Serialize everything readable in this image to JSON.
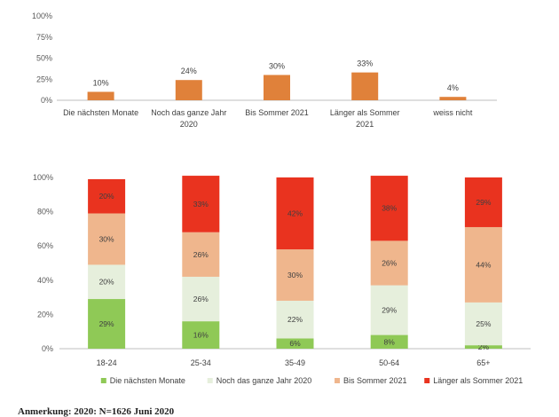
{
  "chart_data": [
    {
      "type": "bar",
      "categories": [
        [
          "Die nächsten Monate"
        ],
        [
          "Noch das ganze Jahr",
          "2020"
        ],
        [
          "Bis Sommer 2021"
        ],
        [
          "Länger als Sommer",
          "2021"
        ],
        [
          "weiss nicht"
        ]
      ],
      "values": [
        10,
        24,
        30,
        33,
        4
      ],
      "value_labels": [
        "10%",
        "24%",
        "30%",
        "33%",
        "4%"
      ],
      "ylim": [
        0,
        100
      ],
      "yticks": [
        "0%",
        "25%",
        "50%",
        "75%",
        "100%"
      ],
      "ytick_values": [
        0,
        25,
        50,
        75,
        100
      ],
      "bar_color": "#e0813a"
    },
    {
      "type": "bar",
      "stacked": true,
      "categories": [
        "18-24",
        "25-34",
        "35-49",
        "50-64",
        "65+"
      ],
      "ylim": [
        0,
        100
      ],
      "yticks": [
        "0%",
        "20%",
        "40%",
        "60%",
        "80%",
        "100%"
      ],
      "ytick_values": [
        0,
        20,
        40,
        60,
        80,
        100
      ],
      "legend_position": "bottom",
      "series": [
        {
          "name": "Die nächsten Monate",
          "color": "#8fc956",
          "values": [
            29,
            16,
            6,
            8,
            2
          ],
          "labels": [
            "29%",
            "16%",
            "6%",
            "8%",
            "2%"
          ]
        },
        {
          "name": "Noch das ganze Jahr 2020",
          "color": "#e6efdc",
          "values": [
            20,
            26,
            22,
            29,
            25
          ],
          "labels": [
            "20%",
            "26%",
            "22%",
            "29%",
            "25%"
          ]
        },
        {
          "name": "Bis Sommer 2021",
          "color": "#efb68d",
          "values": [
            30,
            26,
            30,
            26,
            44
          ],
          "labels": [
            "30%",
            "26%",
            "30%",
            "26%",
            "44%"
          ]
        },
        {
          "name": "Länger als Sommer 2021",
          "color": "#e9331f",
          "values": [
            20,
            33,
            42,
            38,
            29
          ],
          "labels": [
            "20%",
            "33%",
            "42%",
            "38%",
            "29%"
          ]
        }
      ]
    }
  ],
  "note": "Anmerkung: 2020: N=1626 Juni 2020"
}
